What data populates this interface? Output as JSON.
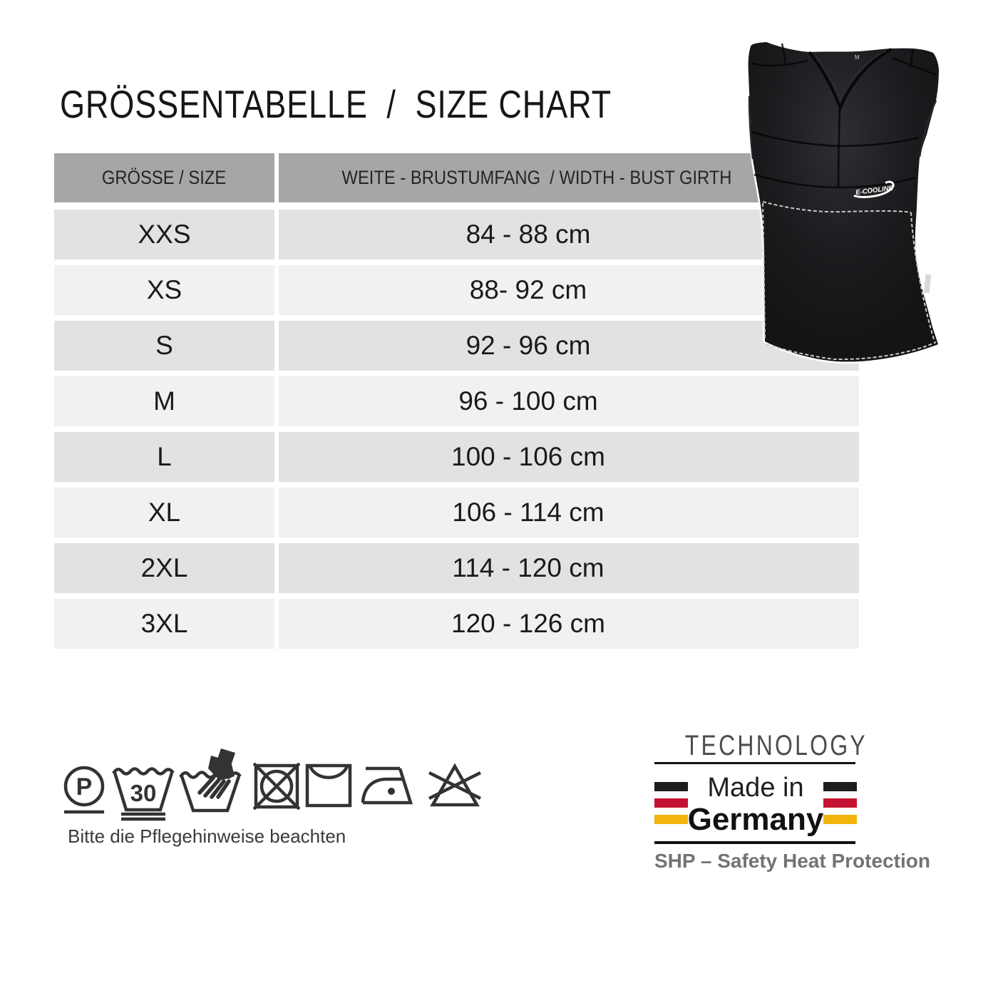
{
  "title": "GRÖSSENTABELLE  /  SIZE CHART",
  "table": {
    "header": {
      "size": "GRÖSSE / SIZE",
      "width": "WEITE - BRUSTUMFANG  / WIDTH - BUST GIRTH"
    },
    "rows": [
      {
        "size": "XXS",
        "width": "84 - 88 cm"
      },
      {
        "size": "XS",
        "width": "88- 92 cm"
      },
      {
        "size": "S",
        "width": "92 - 96 cm"
      },
      {
        "size": "M",
        "width": "96 - 100 cm"
      },
      {
        "size": "L",
        "width": "100 - 106 cm"
      },
      {
        "size": "XL",
        "width": "106 - 114 cm"
      },
      {
        "size": "2XL",
        "width": "114 - 120 cm"
      },
      {
        "size": "3XL",
        "width": "120 - 126 cm"
      }
    ]
  },
  "care": {
    "note": "Bitte die Pflegehinweise beachten",
    "professional_clean_letter": "P",
    "wash_temperature": "30",
    "icons": [
      "professional-cleaning",
      "wash-30-mild",
      "hand-wash",
      "do-not-tumble-dry",
      "drip-dry",
      "iron-low-temperature",
      "do-not-bleach"
    ]
  },
  "product": {
    "brand_logo": "E-COOLINE",
    "neck_size_label": "M"
  },
  "badge": {
    "technology": "TECHNOLOGY",
    "made_in": "Made in",
    "country": "Germany",
    "tagline": "SHP – Safety Heat Protection",
    "flag_black": "#1d1d1b",
    "flag_red": "#c51230",
    "flag_gold": "#f2b50c"
  },
  "colors": {
    "header_bg": "#a6a6a6",
    "row_dark": "#e2e2e2",
    "row_light": "#f1f1f1",
    "icon_stroke": "#333333"
  }
}
